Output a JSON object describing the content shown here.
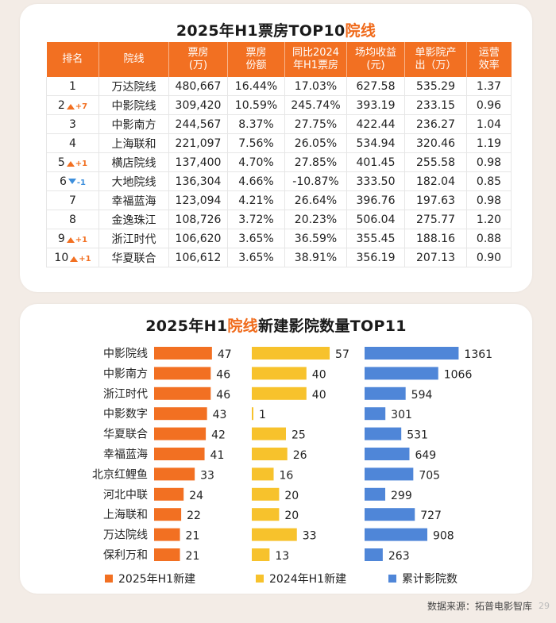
{
  "table_title": {
    "pre": "2025年H1票房TOP10",
    "hl": "院线"
  },
  "table": {
    "headers": [
      "排名",
      "院线",
      "票房\n(万)",
      "票房\n份额",
      "同比2024\n年H1票房",
      "场均收益\n(元)",
      "单影院产\n出（万）",
      "运营\n效率"
    ],
    "rows": [
      {
        "rank": "1",
        "change": "",
        "dir": "",
        "cells": [
          "万达院线",
          "480,667",
          "16.44%",
          "17.03%",
          "627.58",
          "535.29",
          "1.37"
        ]
      },
      {
        "rank": "2",
        "change": "+7",
        "dir": "up",
        "cells": [
          "中影院线",
          "309,420",
          "10.59%",
          "245.74%",
          "393.19",
          "233.15",
          "0.96"
        ]
      },
      {
        "rank": "3",
        "change": "",
        "dir": "",
        "cells": [
          "中影南方",
          "244,567",
          "8.37%",
          "27.75%",
          "422.44",
          "236.27",
          "1.04"
        ]
      },
      {
        "rank": "4",
        "change": "",
        "dir": "",
        "cells": [
          "上海联和",
          "221,097",
          "7.56%",
          "26.05%",
          "534.94",
          "320.46",
          "1.19"
        ]
      },
      {
        "rank": "5",
        "change": "+1",
        "dir": "up",
        "cells": [
          "横店院线",
          "137,400",
          "4.70%",
          "27.85%",
          "401.45",
          "255.58",
          "0.98"
        ]
      },
      {
        "rank": "6",
        "change": "-1",
        "dir": "down",
        "cells": [
          "大地院线",
          "136,304",
          "4.66%",
          "-10.87%",
          "333.50",
          "182.04",
          "0.85"
        ]
      },
      {
        "rank": "7",
        "change": "",
        "dir": "",
        "cells": [
          "幸福蓝海",
          "123,094",
          "4.21%",
          "26.64%",
          "396.76",
          "197.63",
          "0.98"
        ]
      },
      {
        "rank": "8",
        "change": "",
        "dir": "",
        "cells": [
          "金逸珠江",
          "108,726",
          "3.72%",
          "20.23%",
          "506.04",
          "275.77",
          "1.20"
        ]
      },
      {
        "rank": "9",
        "change": "+1",
        "dir": "up",
        "cells": [
          "浙江时代",
          "106,620",
          "3.65%",
          "36.59%",
          "355.45",
          "188.16",
          "0.88"
        ]
      },
      {
        "rank": "10",
        "change": "+1",
        "dir": "up",
        "cells": [
          "华夏联合",
          "106,612",
          "3.65%",
          "38.91%",
          "356.19",
          "207.13",
          "0.90"
        ]
      }
    ]
  },
  "chart_title": {
    "pre": "2025年H1",
    "hl": "院线",
    "post": "新建影院数量TOP11"
  },
  "chart_data": {
    "type": "bar",
    "categories": [
      "中影院线",
      "中影南方",
      "浙江时代",
      "中影数字",
      "华夏联合",
      "幸福蓝海",
      "北京红鲤鱼",
      "河北中联",
      "上海联和",
      "万达院线",
      "保利万和"
    ],
    "series": [
      {
        "name": "2025年H1新建",
        "values": [
          47,
          46,
          46,
          43,
          42,
          41,
          33,
          24,
          22,
          21,
          21
        ],
        "color": "#f27022"
      },
      {
        "name": "2024年H1新建",
        "values": [
          57,
          40,
          40,
          1,
          25,
          26,
          16,
          20,
          20,
          33,
          13
        ],
        "color": "#f7c22c"
      },
      {
        "name": "累计影院数",
        "values": [
          1361,
          1066,
          594,
          301,
          531,
          649,
          705,
          299,
          727,
          908,
          263
        ],
        "color": "#4f86d8"
      }
    ],
    "legend_position": "bottom"
  },
  "source": "数据来源：拓普电影智库",
  "page_number": "29",
  "colors": {
    "accent": "#f27022",
    "yellow": "#f7c22c",
    "blue": "#4f86d8",
    "down": "#3d8fdc"
  }
}
